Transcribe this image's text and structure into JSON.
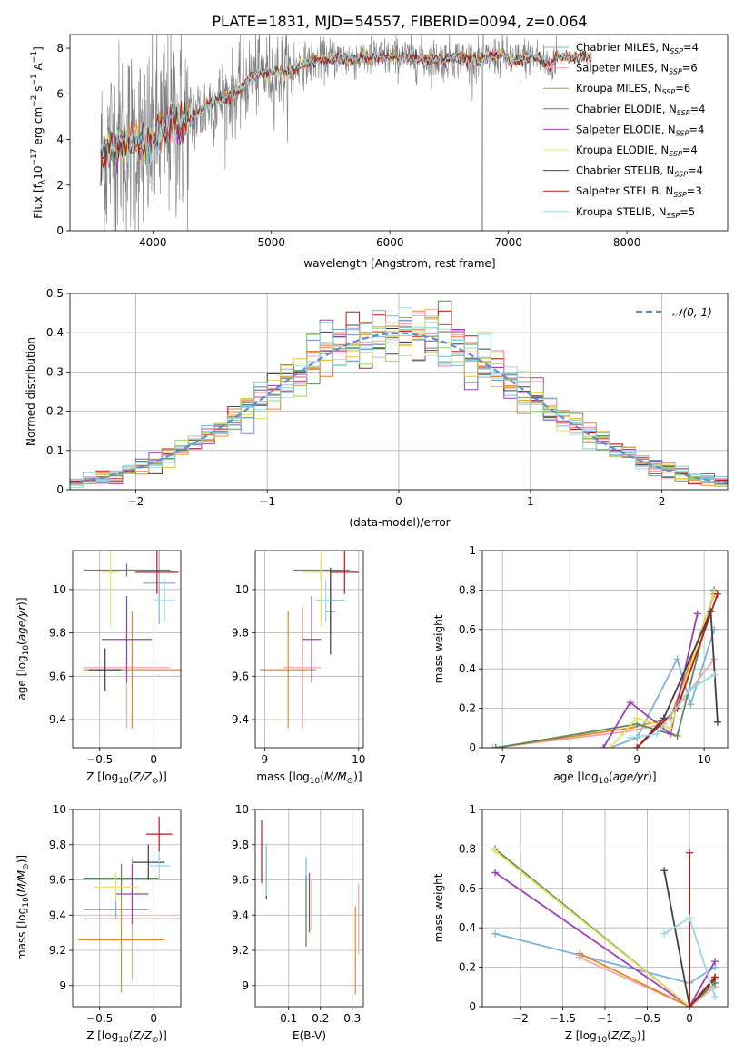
{
  "title": "PLATE=1831, MJD=54557, FIBERID=0094, z=0.064",
  "colors": {
    "Chabrier MILES": "#7fb3d5",
    "Salpeter MILES": "#f4a6a6",
    "Kroupa MILES": "#e08a2c",
    "Chabrier ELODIE": "#5a8a5a",
    "Salpeter ELODIE": "#9b3fb5",
    "Kroupa ELODIE": "#e8e060",
    "Chabrier STELIB": "#404040",
    "Salpeter STELIB": "#c01818",
    "Kroupa STELIB": "#9ad8e8",
    "data": "#7f7f7f",
    "normal_curve": "#5b8ed6",
    "hist_extra": [
      "#6a8fd8",
      "#e07b39",
      "#9ad86a",
      "#e77fb0",
      "#e0c040",
      "#7fd8d8"
    ]
  },
  "chart_data": [
    {
      "id": "spectrum",
      "type": "line",
      "title": "PLATE=1831, MJD=54557, FIBERID=0094, z=0.064",
      "xlabel": "wavelength [Angstrom, rest frame]",
      "ylabel_html": "Flux [f<tspan font-size='9' dy='3'>λ</tspan><tspan dy='-3'>10</tspan><tspan font-size='9' dy='-6'>−17</tspan><tspan dy='6'> erg cm</tspan><tspan font-size='9' dy='-6'>−2</tspan><tspan dy='6'> s</tspan><tspan font-size='9' dy='-6'>−1</tspan><tspan dy='6'> A</tspan><tspan font-size='9' dy='-6'>−1</tspan><tspan dy='6'>]</tspan>",
      "xlim": [
        3300,
        8850
      ],
      "ylim": [
        0,
        8.6
      ],
      "xticks": [
        4000,
        5000,
        6000,
        7000,
        8000
      ],
      "yticks": [
        0,
        2,
        4,
        6,
        8
      ],
      "data_range": [
        3560,
        7420
      ],
      "legend_position": "right",
      "legend": [
        {
          "name": "Chabrier MILES",
          "nssp": "4"
        },
        {
          "name": "Salpeter MILES",
          "nssp": "6"
        },
        {
          "name": "Kroupa MILES",
          "nssp": "6"
        },
        {
          "name": "Chabrier ELODIE",
          "nssp": "4"
        },
        {
          "name": "Salpeter ELODIE",
          "nssp": "4"
        },
        {
          "name": "Kroupa ELODIE",
          "nssp": "4"
        },
        {
          "name": "Chabrier STELIB",
          "nssp": "4"
        },
        {
          "name": "Salpeter STELIB",
          "nssp": "3"
        },
        {
          "name": "Kroupa STELIB",
          "nssp": "5"
        }
      ],
      "continuum": [
        [
          3560,
          3.0
        ],
        [
          3650,
          3.7
        ],
        [
          3750,
          4.0
        ],
        [
          3850,
          3.9
        ],
        [
          3950,
          3.6
        ],
        [
          4050,
          4.3
        ],
        [
          4150,
          4.8
        ],
        [
          4250,
          4.7
        ],
        [
          4350,
          5.0
        ],
        [
          4450,
          5.5
        ],
        [
          4550,
          5.7
        ],
        [
          4650,
          5.9
        ],
        [
          4750,
          6.3
        ],
        [
          4850,
          6.9
        ],
        [
          4950,
          6.9
        ],
        [
          5050,
          7.0
        ],
        [
          5150,
          6.9
        ],
        [
          5250,
          7.3
        ],
        [
          5350,
          7.4
        ],
        [
          5450,
          7.5
        ],
        [
          5550,
          7.6
        ],
        [
          5650,
          7.5
        ],
        [
          5750,
          7.6
        ],
        [
          5850,
          7.6
        ],
        [
          5950,
          7.6
        ],
        [
          6050,
          7.6
        ],
        [
          6150,
          7.6
        ],
        [
          6250,
          7.5
        ],
        [
          6350,
          7.5
        ],
        [
          6450,
          7.5
        ],
        [
          6550,
          7.6
        ],
        [
          6650,
          7.5
        ],
        [
          6750,
          7.5
        ],
        [
          6850,
          7.6
        ],
        [
          6950,
          7.7
        ],
        [
          7050,
          7.4
        ],
        [
          7150,
          7.6
        ],
        [
          7250,
          7.6
        ],
        [
          7350,
          7.2
        ],
        [
          7420,
          7.7
        ]
      ],
      "model_extent": [
        3560,
        7700
      ]
    },
    {
      "id": "residuals",
      "type": "bar",
      "xlabel": "(data-model)/error",
      "ylabel": "Normed distribution",
      "xlim": [
        -2.5,
        2.5
      ],
      "ylim": [
        0,
        0.5
      ],
      "xticks": [
        -2,
        -1,
        0,
        1,
        2
      ],
      "yticks": [
        0.0,
        0.1,
        0.2,
        0.3,
        0.4,
        0.5
      ],
      "legend_position": "top-right",
      "legend": [
        "𝒩(0, 1)"
      ],
      "bin_width": 0.1,
      "normal": {
        "mu": 0,
        "sigma": 1
      }
    },
    {
      "id": "age-vs-Z",
      "type": "scatter",
      "xlabel": "Z [log10(Z/Z⊙)]",
      "ylabel": "age  [log10(age/yr)]",
      "xlim": [
        -0.75,
        0.25
      ],
      "ylim": [
        9.27,
        10.18
      ],
      "xticks": [
        -0.5,
        0.0
      ],
      "yticks": [
        9.4,
        9.6,
        9.8,
        10.0
      ],
      "points": [
        {
          "model": "Chabrier MILES",
          "x": 0.05,
          "xerr": 0.15,
          "y": 10.03,
          "yerr": 0.19
        },
        {
          "model": "Salpeter MILES",
          "x": -0.25,
          "xerr": 0.4,
          "y": 9.64,
          "yerr": 0.28
        },
        {
          "model": "Kroupa MILES",
          "x": -0.2,
          "xerr": 0.45,
          "y": 9.63,
          "yerr": 0.27
        },
        {
          "model": "Chabrier ELODIE",
          "x": -0.25,
          "xerr": 0.4,
          "y": 10.09,
          "yerr": 0.03
        },
        {
          "model": "Salpeter ELODIE",
          "x": -0.25,
          "xerr": 0.23,
          "y": 9.77,
          "yerr": 0.2
        },
        {
          "model": "Kroupa ELODIE",
          "x": -0.4,
          "xerr": 0.08,
          "y": 10.08,
          "yerr": 0.25
        },
        {
          "model": "Chabrier STELIB",
          "x": -0.45,
          "xerr": 0.15,
          "y": 9.63,
          "yerr": 0.1
        },
        {
          "model": "Salpeter STELIB",
          "x": 0.03,
          "xerr": 0.2,
          "y": 10.08,
          "yerr": 0.1
        },
        {
          "model": "Kroupa STELIB",
          "x": 0.1,
          "xerr": 0.1,
          "y": 9.95,
          "yerr": 0.1
        }
      ]
    },
    {
      "id": "age-vs-mass",
      "type": "scatter",
      "xlabel": "mass [log10(M/M⊙)]",
      "ylabel": "",
      "xlim": [
        8.9,
        10.05
      ],
      "ylim": [
        9.27,
        10.18
      ],
      "xticks": [
        9,
        10
      ],
      "yticks": [
        9.4,
        9.6,
        9.8,
        10.0
      ],
      "points": [
        {
          "model": "Chabrier MILES",
          "x": 9.7,
          "xerr": 0.15,
          "y": 9.95,
          "yerr": 0.15
        },
        {
          "model": "Salpeter MILES",
          "x": 9.4,
          "xerr": 0.2,
          "y": 9.64,
          "yerr": 0.28
        },
        {
          "model": "Kroupa MILES",
          "x": 9.25,
          "xerr": 0.3,
          "y": 9.63,
          "yerr": 0.27
        },
        {
          "model": "Chabrier ELODIE",
          "x": 9.6,
          "xerr": 0.3,
          "y": 10.09,
          "yerr": 0.04
        },
        {
          "model": "Salpeter ELODIE",
          "x": 9.5,
          "xerr": 0.1,
          "y": 9.77,
          "yerr": 0.2
        },
        {
          "model": "Kroupa ELODIE",
          "x": 9.6,
          "xerr": 0.2,
          "y": 10.08,
          "yerr": 0.25
        },
        {
          "model": "Chabrier STELIB",
          "x": 9.7,
          "xerr": 0.05,
          "y": 9.9,
          "yerr": 0.2
        },
        {
          "model": "Salpeter STELIB",
          "x": 9.85,
          "xerr": 0.15,
          "y": 10.08,
          "yerr": 0.1
        },
        {
          "model": "Kroupa STELIB",
          "x": 9.65,
          "xerr": 0.05,
          "y": 9.95,
          "yerr": 0.1
        }
      ]
    },
    {
      "id": "weight-vs-age",
      "type": "line",
      "xlabel": "age  [log10(age/yr)]",
      "ylabel": "mass weight",
      "xlim": [
        6.7,
        10.35
      ],
      "ylim": [
        0,
        1.0
      ],
      "xticks": [
        7,
        8,
        9,
        10
      ],
      "yticks": [
        0.0,
        0.2,
        0.4,
        0.6,
        0.8,
        1.0
      ],
      "series": [
        {
          "model": "Chabrier MILES",
          "pts": [
            [
              8.6,
              0.0
            ],
            [
              9.0,
              0.05
            ],
            [
              9.6,
              0.45
            ],
            [
              9.8,
              0.22
            ],
            [
              10.15,
              0.6
            ]
          ]
        },
        {
          "model": "Salpeter MILES",
          "pts": [
            [
              6.85,
              0.0
            ],
            [
              8.8,
              0.08
            ],
            [
              9.4,
              0.12
            ],
            [
              9.7,
              0.25
            ],
            [
              10.15,
              0.45
            ]
          ]
        },
        {
          "model": "Kroupa MILES",
          "pts": [
            [
              6.9,
              0.0
            ],
            [
              8.9,
              0.1
            ],
            [
              9.5,
              0.15
            ],
            [
              10.15,
              0.78
            ]
          ]
        },
        {
          "model": "Chabrier ELODIE",
          "pts": [
            [
              6.9,
              0.0
            ],
            [
              9.0,
              0.12
            ],
            [
              9.6,
              0.06
            ],
            [
              10.15,
              0.8
            ]
          ]
        },
        {
          "model": "Salpeter ELODIE",
          "pts": [
            [
              8.5,
              0.0
            ],
            [
              8.9,
              0.23
            ],
            [
              9.5,
              0.07
            ],
            [
              9.9,
              0.68
            ]
          ]
        },
        {
          "model": "Kroupa ELODIE",
          "pts": [
            [
              8.6,
              0.0
            ],
            [
              9.0,
              0.15
            ],
            [
              9.5,
              0.1
            ],
            [
              10.15,
              0.79
            ]
          ]
        },
        {
          "model": "Chabrier STELIB",
          "pts": [
            [
              9.0,
              0.0
            ],
            [
              9.4,
              0.15
            ],
            [
              10.1,
              0.69
            ],
            [
              10.2,
              0.13
            ]
          ]
        },
        {
          "model": "Salpeter STELIB",
          "pts": [
            [
              9.0,
              0.0
            ],
            [
              9.6,
              0.2
            ],
            [
              10.2,
              0.78
            ]
          ]
        },
        {
          "model": "Kroupa STELIB",
          "pts": [
            [
              8.9,
              0.05
            ],
            [
              9.3,
              0.07
            ],
            [
              9.8,
              0.3
            ],
            [
              10.15,
              0.37
            ]
          ]
        }
      ]
    },
    {
      "id": "mass-vs-Z",
      "type": "scatter",
      "xlabel": "Z [log10(Z/Z⊙)]",
      "ylabel": "mass [log10(M/M⊙)]",
      "xlim": [
        -0.75,
        0.25
      ],
      "ylim": [
        8.88,
        10.0
      ],
      "xticks": [
        -0.5,
        0.0
      ],
      "yticks": [
        9.0,
        9.2,
        9.4,
        9.6,
        9.8,
        10.0
      ],
      "points": [
        {
          "model": "Chabrier MILES",
          "x": -0.35,
          "xerr": 0.3,
          "y": 9.43,
          "yerr": 0.05
        },
        {
          "model": "Salpeter MILES",
          "x": -0.2,
          "xerr": 0.45,
          "y": 9.38,
          "yerr": 0.35
        },
        {
          "model": "Kroupa MILES",
          "x": -0.3,
          "xerr": 0.4,
          "y": 9.26,
          "yerr": 0.3
        },
        {
          "model": "Chabrier ELODIE",
          "x": -0.3,
          "xerr": 0.35,
          "y": 9.61,
          "yerr": 0.08
        },
        {
          "model": "Salpeter ELODIE",
          "x": -0.2,
          "xerr": 0.15,
          "y": 9.52,
          "yerr": 0.17
        },
        {
          "model": "Kroupa ELODIE",
          "x": -0.35,
          "xerr": 0.2,
          "y": 9.56,
          "yerr": 0.08
        },
        {
          "model": "Chabrier STELIB",
          "x": -0.05,
          "xerr": 0.15,
          "y": 9.7,
          "yerr": 0.1
        },
        {
          "model": "Salpeter STELIB",
          "x": 0.05,
          "xerr": 0.12,
          "y": 9.86,
          "yerr": 0.1
        },
        {
          "model": "Kroupa STELIB",
          "x": 0.05,
          "xerr": 0.1,
          "y": 9.68,
          "yerr": 0.08
        }
      ]
    },
    {
      "id": "mass-vs-ebv",
      "type": "scatter",
      "xlabel": "E(B-V)",
      "ylabel": "",
      "xlim": [
        -0.005,
        0.335
      ],
      "ylim": [
        8.88,
        10.0
      ],
      "xticks": [
        0.1,
        0.2,
        0.3
      ],
      "yticks": [
        9.0,
        9.2,
        9.4,
        9.6,
        9.8,
        10.0
      ],
      "points": [
        {
          "model": "Chabrier MILES",
          "x": 0.155,
          "xerr": 0,
          "y": 9.48,
          "yerr": 0.25
        },
        {
          "model": "Salpeter MILES",
          "x": 0.32,
          "xerr": 0,
          "y": 9.38,
          "yerr": 0.2
        },
        {
          "model": "Kroupa MILES",
          "x": 0.31,
          "xerr": 0,
          "y": 9.2,
          "yerr": 0.25
        },
        {
          "model": "Chabrier ELODIE",
          "x": 0.155,
          "xerr": 0,
          "y": 9.42,
          "yerr": 0.2
        },
        {
          "model": "Salpeter ELODIE",
          "x": 0.165,
          "xerr": 0,
          "y": 9.47,
          "yerr": 0.17
        },
        {
          "model": "Kroupa ELODIE",
          "x": 0.17,
          "xerr": 0,
          "y": 9.46,
          "yerr": 0.15
        },
        {
          "model": "Chabrier STELIB",
          "x": 0.03,
          "xerr": 0,
          "y": 9.64,
          "yerr": 0.15
        },
        {
          "model": "Salpeter STELIB",
          "x": 0.015,
          "xerr": 0,
          "y": 9.76,
          "yerr": 0.18
        },
        {
          "model": "Kroupa STELIB",
          "x": 0.03,
          "xerr": 0,
          "y": 9.66,
          "yerr": 0.15
        }
      ]
    },
    {
      "id": "weight-vs-Z",
      "type": "line",
      "xlabel": "Z [log10(Z/Z⊙)]",
      "ylabel": "mass weight",
      "xlim": [
        -2.45,
        0.45
      ],
      "ylim": [
        0,
        1.0
      ],
      "xticks": [
        -2.0,
        -1.5,
        -1.0,
        -0.5,
        0.0
      ],
      "yticks": [
        0.0,
        0.2,
        0.4,
        0.6,
        0.8,
        1.0
      ],
      "series": [
        {
          "model": "Chabrier MILES",
          "pts": [
            [
              -2.3,
              0.37
            ],
            [
              0.0,
              0.12
            ],
            [
              0.3,
              0.2
            ]
          ]
        },
        {
          "model": "Salpeter MILES",
          "pts": [
            [
              -1.3,
              0.25
            ],
            [
              0.0,
              0.0
            ],
            [
              0.3,
              0.1
            ]
          ]
        },
        {
          "model": "Kroupa MILES",
          "pts": [
            [
              -1.3,
              0.27
            ],
            [
              0.0,
              0.0
            ],
            [
              0.3,
              0.15
            ]
          ]
        },
        {
          "model": "Chabrier ELODIE",
          "pts": [
            [
              -2.3,
              0.8
            ],
            [
              0.0,
              0.0
            ],
            [
              0.3,
              0.12
            ]
          ]
        },
        {
          "model": "Salpeter ELODIE",
          "pts": [
            [
              -2.3,
              0.68
            ],
            [
              0.0,
              0.0
            ],
            [
              0.3,
              0.23
            ]
          ]
        },
        {
          "model": "Kroupa ELODIE",
          "pts": [
            [
              -2.3,
              0.79
            ],
            [
              0.0,
              0.0
            ],
            [
              0.3,
              0.15
            ]
          ]
        },
        {
          "model": "Chabrier STELIB",
          "pts": [
            [
              -0.3,
              0.69
            ],
            [
              0.0,
              0.0
            ],
            [
              0.3,
              0.14
            ]
          ]
        },
        {
          "model": "Salpeter STELIB",
          "pts": [
            [
              0.0,
              0.78
            ],
            [
              0.0,
              0.0
            ],
            [
              0.3,
              0.15
            ]
          ]
        },
        {
          "model": "Kroupa STELIB",
          "pts": [
            [
              -0.3,
              0.37
            ],
            [
              0.0,
              0.45
            ],
            [
              0.3,
              0.05
            ]
          ]
        }
      ]
    }
  ]
}
